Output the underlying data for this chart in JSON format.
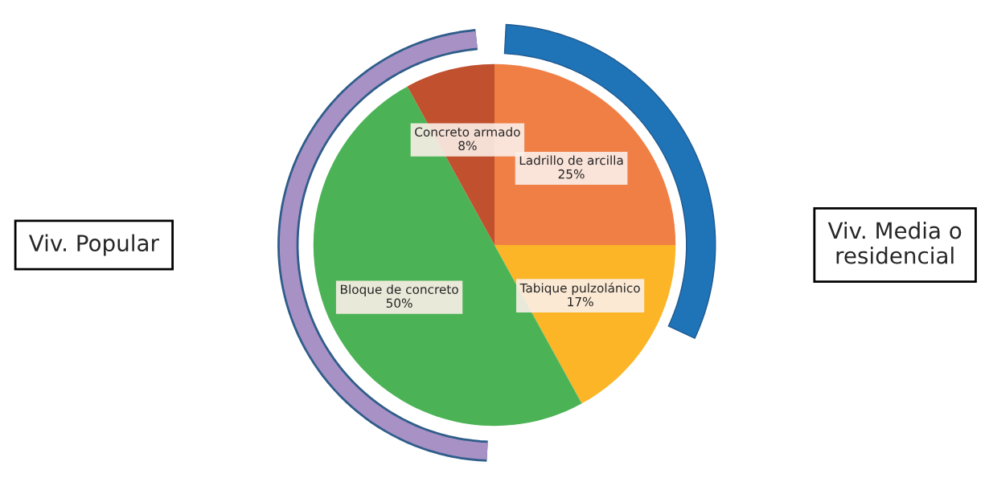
{
  "chart_data": {
    "type": "pie",
    "categories": [
      "Ladrillo de arcilla",
      "Tabique pulzolánico",
      "Bloque de concreto",
      "Concreto armado"
    ],
    "values": [
      25,
      17,
      50,
      8
    ],
    "value_labels": [
      "25%",
      "17%",
      "50%",
      "8%"
    ],
    "colors": [
      "#f07f45",
      "#fbb526",
      "#4bb355",
      "#c0502e"
    ],
    "annotations": [
      "Viv. Popular",
      "Viv. Media o residencial"
    ]
  }
}
